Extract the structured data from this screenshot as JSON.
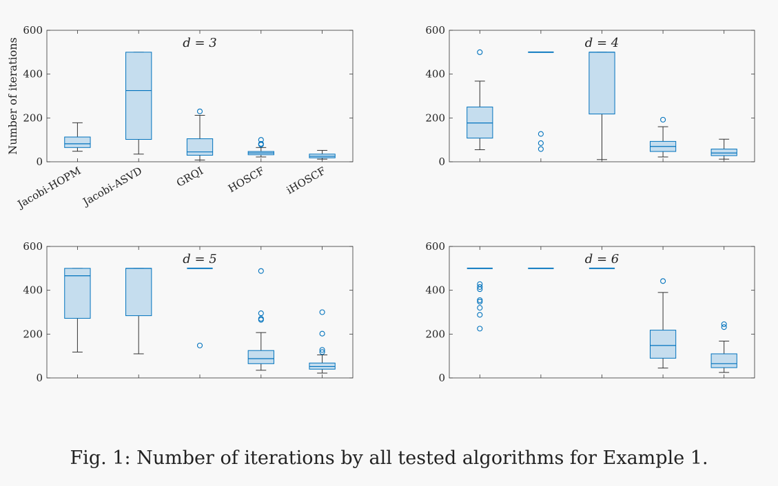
{
  "caption": "Fig. 1: Number of iterations by all tested algorithms for Example 1.",
  "colors": {
    "box_stroke": "#0072BD",
    "box_fill": "#C5DDEE",
    "whisker": "#333333",
    "axis": "#333333"
  },
  "chart_data": [
    {
      "type": "box",
      "title": "d = 3",
      "ylabel": "Number of iterations",
      "ylim": [
        0,
        600
      ],
      "yticks": [
        0,
        200,
        400,
        600
      ],
      "categories": [
        "Jacobi-HOPM",
        "Jacobi-ASVD",
        "GRQI",
        "HOSCF",
        "iHOSCF"
      ],
      "show_xtick_labels": true,
      "boxes": [
        {
          "min": 48,
          "q1": 65,
          "median": 82,
          "q3": 113,
          "max": 178,
          "outliers": []
        },
        {
          "min": 35,
          "q1": 102,
          "median": 325,
          "q3": 500,
          "max": 500,
          "outliers": []
        },
        {
          "min": 8,
          "q1": 30,
          "median": 45,
          "q3": 105,
          "max": 212,
          "outliers": [
            230
          ]
        },
        {
          "min": 22,
          "q1": 32,
          "median": 40,
          "q3": 47,
          "max": 65,
          "outliers": [
            78,
            82,
            100
          ]
        },
        {
          "min": 12,
          "q1": 18,
          "median": 25,
          "q3": 35,
          "max": 52,
          "outliers": []
        }
      ]
    },
    {
      "type": "box",
      "title": "d = 4",
      "ylim": [
        0,
        600
      ],
      "yticks": [
        0,
        200,
        400,
        600
      ],
      "categories": [
        "Jacobi-HOPM",
        "Jacobi-ASVD",
        "GRQI",
        "HOSCF",
        "iHOSCF"
      ],
      "show_xtick_labels": false,
      "boxes": [
        {
          "min": 55,
          "q1": 108,
          "median": 177,
          "q3": 250,
          "max": 368,
          "outliers": [
            500
          ]
        },
        {
          "min": 500,
          "q1": 500,
          "median": 500,
          "q3": 500,
          "max": 500,
          "outliers": [
            58,
            85,
            127
          ]
        },
        {
          "min": 10,
          "q1": 218,
          "median": 500,
          "q3": 500,
          "max": 500,
          "outliers": []
        },
        {
          "min": 22,
          "q1": 47,
          "median": 70,
          "q3": 93,
          "max": 160,
          "outliers": [
            192
          ]
        },
        {
          "min": 12,
          "q1": 28,
          "median": 40,
          "q3": 58,
          "max": 103,
          "outliers": []
        }
      ]
    },
    {
      "type": "box",
      "title": "d = 5",
      "ylim": [
        0,
        600
      ],
      "yticks": [
        0,
        200,
        400,
        600
      ],
      "categories": [
        "Jacobi-HOPM",
        "Jacobi-ASVD",
        "GRQI",
        "HOSCF",
        "iHOSCF"
      ],
      "show_xtick_labels": false,
      "boxes": [
        {
          "min": 118,
          "q1": 272,
          "median": 466,
          "q3": 500,
          "max": 500,
          "outliers": []
        },
        {
          "min": 110,
          "q1": 284,
          "median": 500,
          "q3": 500,
          "max": 500,
          "outliers": []
        },
        {
          "min": 500,
          "q1": 500,
          "median": 500,
          "q3": 500,
          "max": 500,
          "outliers": [
            148
          ]
        },
        {
          "min": 35,
          "q1": 65,
          "median": 88,
          "q3": 125,
          "max": 207,
          "outliers": [
            265,
            270,
            295,
            488
          ]
        },
        {
          "min": 22,
          "q1": 40,
          "median": 52,
          "q3": 68,
          "max": 105,
          "outliers": [
            118,
            128,
            202,
            300
          ]
        }
      ]
    },
    {
      "type": "box",
      "title": "d = 6",
      "ylim": [
        0,
        600
      ],
      "yticks": [
        0,
        200,
        400,
        600
      ],
      "categories": [
        "Jacobi-HOPM",
        "Jacobi-ASVD",
        "GRQI",
        "HOSCF",
        "iHOSCF"
      ],
      "show_xtick_labels": false,
      "boxes": [
        {
          "min": 500,
          "q1": 500,
          "median": 500,
          "q3": 500,
          "max": 500,
          "outliers": [
            225,
            288,
            320,
            348,
            355,
            405,
            415,
            428
          ]
        },
        {
          "min": 500,
          "q1": 500,
          "median": 500,
          "q3": 500,
          "max": 500,
          "outliers": []
        },
        {
          "min": 500,
          "q1": 500,
          "median": 500,
          "q3": 500,
          "max": 500,
          "outliers": []
        },
        {
          "min": 45,
          "q1": 90,
          "median": 148,
          "q3": 218,
          "max": 390,
          "outliers": [
            442
          ]
        },
        {
          "min": 25,
          "q1": 47,
          "median": 65,
          "q3": 110,
          "max": 168,
          "outliers": [
            232,
            245
          ]
        }
      ]
    }
  ]
}
